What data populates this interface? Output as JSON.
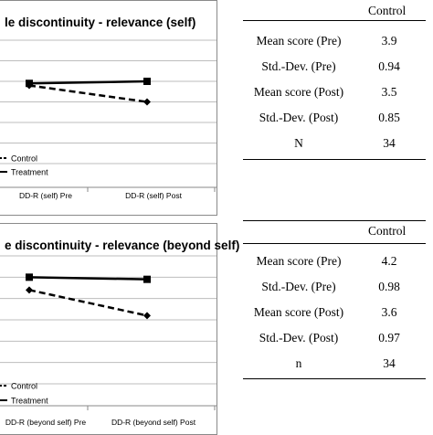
{
  "chart_data": [
    {
      "type": "line",
      "title": "le discontinuity - relevance (self)",
      "categories": [
        "DD-R (self) Pre",
        "DD-R (self) Post"
      ],
      "series": [
        {
          "name": "Control",
          "values": [
            3.9,
            3.5
          ],
          "style": "dashed",
          "marker": "diamond",
          "color": "#000000"
        },
        {
          "name": "Treatment",
          "values": [
            3.95,
            4.0
          ],
          "style": "solid",
          "marker": "square",
          "color": "#000000"
        }
      ],
      "ylim": [
        2.0,
        5.0
      ],
      "grid": true,
      "legend": "bottom-left"
    },
    {
      "type": "line",
      "title": "e discontinuity - relevance (beyond self)",
      "categories": [
        "DD-R (beyond self) Pre",
        "DD-R (beyond self) Post"
      ],
      "series": [
        {
          "name": "Control",
          "values": [
            4.2,
            3.6
          ],
          "style": "dashed",
          "marker": "diamond",
          "color": "#000000"
        },
        {
          "name": "Treatment",
          "values": [
            4.5,
            4.45
          ],
          "style": "solid",
          "marker": "square",
          "color": "#000000"
        }
      ],
      "ylim": [
        2.0,
        5.0
      ],
      "grid": true,
      "legend": "bottom-left"
    }
  ],
  "tables": [
    {
      "header": "Control",
      "rows": [
        {
          "label": "Mean score (Pre)",
          "value": "3.9"
        },
        {
          "label": "Std.-Dev. (Pre)",
          "value": "0.94"
        },
        {
          "label": "Mean score (Post)",
          "value": "3.5"
        },
        {
          "label": "Std.-Dev. (Post)",
          "value": "0.85"
        },
        {
          "label": "N",
          "value": "34"
        }
      ]
    },
    {
      "header": "Control",
      "rows": [
        {
          "label": "Mean score (Pre)",
          "value": "4.2"
        },
        {
          "label": "Std.-Dev. (Pre)",
          "value": "0.98"
        },
        {
          "label": "Mean score (Post)",
          "value": "3.6"
        },
        {
          "label": "Std.-Dev. (Post)",
          "value": "0.97"
        },
        {
          "label": "n",
          "value": "34"
        }
      ]
    }
  ]
}
